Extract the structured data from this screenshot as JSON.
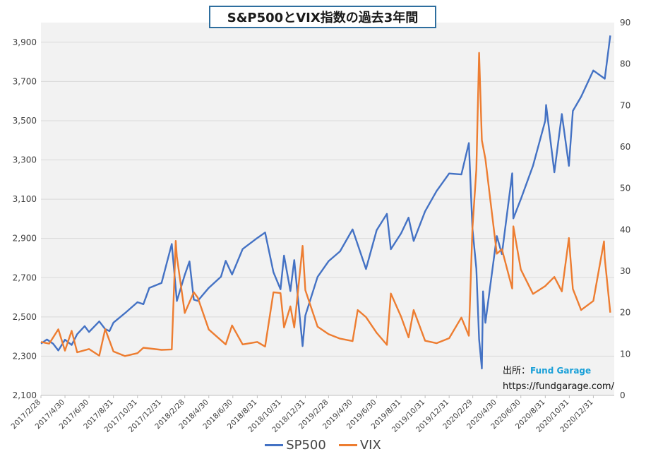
{
  "title": "S&P500とVIX指数の過去3年間",
  "credit": {
    "source_label": "出所：",
    "brand": "Fund Garage",
    "url": "https://fundgarage.com/"
  },
  "colors": {
    "sp500": "#4472c4",
    "vix": "#ed7d31",
    "plot_bg": "#f2f2f2",
    "grid": "#d9d9d9",
    "axis_text": "#404040"
  },
  "chart_data": {
    "type": "line",
    "x_tick_labels": [
      "2017/2/28",
      "2017/4/30",
      "2017/6/30",
      "2017/8/31",
      "2017/10/31",
      "2017/12/31",
      "2018/2/28",
      "2018/4/30",
      "2018/6/30",
      "2018/8/31",
      "2018/10/31",
      "2018/12/31",
      "2019/2/28",
      "2019/4/30",
      "2019/6/30",
      "2019/8/31",
      "2019/10/31",
      "2019/12/31",
      "2020/2/29",
      "2020/4/30",
      "2020/6/30",
      "2020/8/31",
      "2020/10/31",
      "2020/12/31"
    ],
    "y_left": {
      "ylim": [
        2100,
        4000
      ],
      "ticks": [
        2100,
        2300,
        2500,
        2700,
        2900,
        3100,
        3300,
        3500,
        3700,
        3900
      ],
      "tick_labels": [
        "2,100",
        "2,300",
        "2,500",
        "2,700",
        "2,900",
        "3,100",
        "3,300",
        "3,500",
        "3,700",
        "3,900"
      ]
    },
    "y_right": {
      "ylim": [
        0,
        90
      ],
      "ticks": [
        0,
        10,
        20,
        30,
        40,
        50,
        60,
        70,
        80,
        90
      ],
      "tick_labels": [
        "0",
        "10",
        "20",
        "30",
        "40",
        "50",
        "60",
        "70",
        "80",
        "90"
      ]
    },
    "grid": true,
    "legend_position": "bottom",
    "series": [
      {
        "name": "SP500",
        "axis": "left",
        "points": [
          [
            "2017/2/28",
            2364
          ],
          [
            "2017/3/15",
            2385
          ],
          [
            "2017/3/31",
            2363
          ],
          [
            "2017/4/13",
            2329
          ],
          [
            "2017/4/30",
            2384
          ],
          [
            "2017/5/17",
            2357
          ],
          [
            "2017/5/31",
            2412
          ],
          [
            "2017/6/19",
            2453
          ],
          [
            "2017/6/30",
            2423
          ],
          [
            "2017/7/26",
            2477
          ],
          [
            "2017/8/10",
            2438
          ],
          [
            "2017/8/21",
            2428
          ],
          [
            "2017/8/31",
            2471
          ],
          [
            "2017/9/29",
            2519
          ],
          [
            "2017/10/31",
            2575
          ],
          [
            "2017/11/15",
            2565
          ],
          [
            "2017/11/30",
            2648
          ],
          [
            "2017/12/31",
            2673
          ],
          [
            "2018/1/26",
            2872
          ],
          [
            "2018/2/8",
            2581
          ],
          [
            "2018/2/28",
            2714
          ],
          [
            "2018/3/12",
            2783
          ],
          [
            "2018/3/23",
            2588
          ],
          [
            "2018/4/2",
            2582
          ],
          [
            "2018/4/30",
            2648
          ],
          [
            "2018/5/31",
            2705
          ],
          [
            "2018/6/12",
            2786
          ],
          [
            "2018/6/28",
            2716
          ],
          [
            "2018/7/25",
            2846
          ],
          [
            "2018/8/31",
            2902
          ],
          [
            "2018/9/20",
            2930
          ],
          [
            "2018/10/11",
            2728
          ],
          [
            "2018/10/29",
            2641
          ],
          [
            "2018/11/7",
            2813
          ],
          [
            "2018/11/23",
            2632
          ],
          [
            "2018/12/3",
            2790
          ],
          [
            "2018/12/24",
            2351
          ],
          [
            "2018/12/31",
            2507
          ],
          [
            "2019/1/31",
            2704
          ],
          [
            "2019/2/28",
            2784
          ],
          [
            "2019/3/29",
            2834
          ],
          [
            "2019/4/30",
            2946
          ],
          [
            "2019/6/3",
            2744
          ],
          [
            "2019/6/30",
            2942
          ],
          [
            "2019/7/26",
            3025
          ],
          [
            "2019/8/5",
            2845
          ],
          [
            "2019/8/31",
            2926
          ],
          [
            "2019/9/19",
            3006
          ],
          [
            "2019/10/2",
            2887
          ],
          [
            "2019/10/31",
            3038
          ],
          [
            "2019/11/29",
            3141
          ],
          [
            "2019/12/31",
            3231
          ],
          [
            "2020/1/31",
            3226
          ],
          [
            "2020/2/19",
            3386
          ],
          [
            "2020/2/28",
            2954
          ],
          [
            "2020/3/9",
            2746
          ],
          [
            "2020/3/16",
            2386
          ],
          [
            "2020/3/23",
            2237
          ],
          [
            "2020/3/26",
            2630
          ],
          [
            "2020/4/1",
            2470
          ],
          [
            "2020/4/30",
            2912
          ],
          [
            "2020/5/13",
            2820
          ],
          [
            "2020/6/8",
            3232
          ],
          [
            "2020/6/11",
            3002
          ],
          [
            "2020/6/30",
            3100
          ],
          [
            "2020/7/31",
            3271
          ],
          [
            "2020/8/31",
            3500
          ],
          [
            "2020/9/2",
            3580
          ],
          [
            "2020/9/23",
            3237
          ],
          [
            "2020/10/12",
            3534
          ],
          [
            "2020/10/30",
            3270
          ],
          [
            "2020/11/9",
            3550
          ],
          [
            "2020/11/30",
            3622
          ],
          [
            "2020/12/31",
            3756
          ],
          [
            "2021/1/29",
            3714
          ],
          [
            "2021/2/12",
            3934
          ]
        ]
      },
      {
        "name": "VIX",
        "axis": "right",
        "points": [
          [
            "2017/2/28",
            12.9
          ],
          [
            "2017/3/21",
            12.5
          ],
          [
            "2017/4/13",
            15.96
          ],
          [
            "2017/4/30",
            10.8
          ],
          [
            "2017/5/17",
            15.6
          ],
          [
            "2017/5/31",
            10.4
          ],
          [
            "2017/6/30",
            11.2
          ],
          [
            "2017/7/26",
            9.6
          ],
          [
            "2017/8/10",
            16.0
          ],
          [
            "2017/8/21",
            13.2
          ],
          [
            "2017/8/31",
            10.6
          ],
          [
            "2017/9/29",
            9.5
          ],
          [
            "2017/10/31",
            10.2
          ],
          [
            "2017/11/15",
            11.5
          ],
          [
            "2017/12/31",
            11.0
          ],
          [
            "2018/1/26",
            11.1
          ],
          [
            "2018/2/5",
            37.3
          ],
          [
            "2018/2/8",
            33.5
          ],
          [
            "2018/2/28",
            19.9
          ],
          [
            "2018/3/23",
            24.9
          ],
          [
            "2018/4/2",
            23.6
          ],
          [
            "2018/4/30",
            15.9
          ],
          [
            "2018/6/12",
            12.3
          ],
          [
            "2018/6/28",
            16.9
          ],
          [
            "2018/7/25",
            12.3
          ],
          [
            "2018/8/31",
            12.9
          ],
          [
            "2018/9/20",
            11.8
          ],
          [
            "2018/10/11",
            24.9
          ],
          [
            "2018/10/29",
            24.7
          ],
          [
            "2018/11/7",
            16.4
          ],
          [
            "2018/11/23",
            21.5
          ],
          [
            "2018/12/3",
            16.4
          ],
          [
            "2018/12/24",
            36.1
          ],
          [
            "2018/12/31",
            25.4
          ],
          [
            "2019/1/31",
            16.6
          ],
          [
            "2019/2/28",
            14.8
          ],
          [
            "2019/3/29",
            13.7
          ],
          [
            "2019/4/30",
            13.1
          ],
          [
            "2019/5/13",
            20.6
          ],
          [
            "2019/6/3",
            18.9
          ],
          [
            "2019/6/30",
            15.1
          ],
          [
            "2019/7/26",
            12.2
          ],
          [
            "2019/8/5",
            24.6
          ],
          [
            "2019/8/31",
            19.0
          ],
          [
            "2019/9/19",
            14.0
          ],
          [
            "2019/10/2",
            20.6
          ],
          [
            "2019/10/31",
            13.2
          ],
          [
            "2019/11/29",
            12.6
          ],
          [
            "2019/12/31",
            13.8
          ],
          [
            "2020/1/31",
            18.8
          ],
          [
            "2020/2/19",
            14.4
          ],
          [
            "2020/2/28",
            40.1
          ],
          [
            "2020/3/9",
            54.5
          ],
          [
            "2020/3/16",
            82.7
          ],
          [
            "2020/3/23",
            61.6
          ],
          [
            "2020/4/1",
            57.1
          ],
          [
            "2020/4/30",
            34.2
          ],
          [
            "2020/5/13",
            35.3
          ],
          [
            "2020/6/8",
            25.8
          ],
          [
            "2020/6/11",
            40.8
          ],
          [
            "2020/6/30",
            30.4
          ],
          [
            "2020/7/31",
            24.5
          ],
          [
            "2020/8/31",
            26.4
          ],
          [
            "2020/9/2",
            26.6
          ],
          [
            "2020/9/23",
            28.6
          ],
          [
            "2020/10/12",
            25.1
          ],
          [
            "2020/10/30",
            38.0
          ],
          [
            "2020/11/9",
            25.7
          ],
          [
            "2020/11/30",
            20.6
          ],
          [
            "2020/12/31",
            22.8
          ],
          [
            "2021/1/27",
            37.2
          ],
          [
            "2021/1/29",
            33.1
          ],
          [
            "2021/2/12",
            19.97
          ]
        ]
      }
    ]
  }
}
